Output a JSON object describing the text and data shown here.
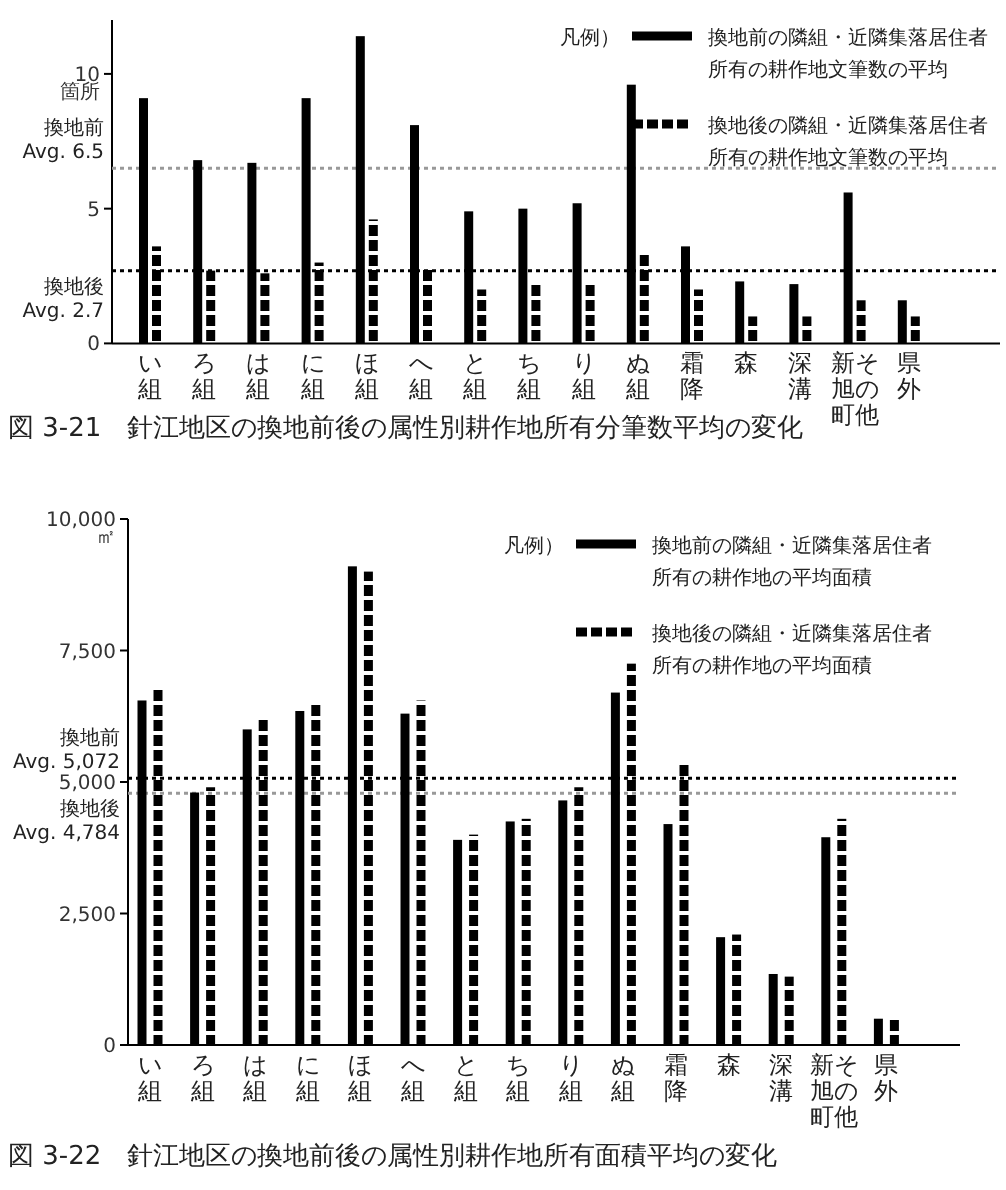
{
  "chart_data": [
    {
      "type": "bar",
      "title": "図 3-21　針江地区の換地前後の属性別耕作地所有分筆数平均の変化",
      "ylabel": "箇所",
      "legend_title": "凡例）",
      "legend": "top right",
      "grid": false,
      "categories": [
        "い組",
        "ろ組",
        "は組",
        "に組",
        "ほ組",
        "へ組",
        "と組",
        "ち組",
        "り組",
        "ぬ組",
        "霜降",
        "森",
        "深溝",
        "新旭町その他",
        "県外"
      ],
      "series": [
        {
          "name": "換地前の隣組・近隣集落居住者所有の耕作地文筆数の平均",
          "color": "#000000",
          "line_style": "solid",
          "values": [
            9.1,
            6.8,
            6.7,
            9.1,
            11.4,
            8.1,
            4.9,
            5.0,
            5.2,
            9.6,
            3.6,
            2.3,
            2.2,
            5.6,
            1.6
          ]
        },
        {
          "name": "換地後の隣組・近隣集落居住者所有の耕作地文筆数の平均",
          "color": "#000000",
          "line_style": "dashed",
          "values": [
            3.6,
            2.7,
            2.6,
            3.0,
            4.6,
            2.8,
            2.0,
            2.3,
            2.2,
            3.4,
            2.0,
            1.0,
            1.0,
            1.6,
            1.0
          ]
        }
      ],
      "ylim": [
        0,
        12
      ],
      "yticks": [
        0,
        5,
        10
      ],
      "ref_lines": [
        {
          "axis": "y",
          "value": 6.5,
          "label": "換地前\nAvg. 6.5",
          "color": "#999999",
          "line_style": "dotted"
        },
        {
          "axis": "y",
          "value": 2.7,
          "label": "換地後\nAvg. 2.7",
          "color": "#000000",
          "line_style": "dotted"
        }
      ]
    },
    {
      "type": "bar",
      "title": "図 3-22　針江地区の換地前後の属性別耕作地所有面積平均の変化",
      "ylabel": "㎡",
      "legend_title": "凡例）",
      "legend": "top right",
      "grid": false,
      "categories": [
        "い組",
        "ろ組",
        "は組",
        "に組",
        "ほ組",
        "へ組",
        "と組",
        "ち組",
        "り組",
        "ぬ組",
        "霜降",
        "森",
        "深溝",
        "新旭町その他",
        "県外"
      ],
      "series": [
        {
          "name": "換地前の隣組・近隣集落居住者所有の耕作地の平均面積",
          "color": "#000000",
          "line_style": "solid",
          "values": [
            6550,
            4800,
            6000,
            6350,
            9100,
            6300,
            3900,
            4250,
            4650,
            6700,
            4200,
            2050,
            1350,
            3950,
            500
          ]
        },
        {
          "name": "換地後の隣組・近隣集落居住者所有の耕作地の平均面積",
          "color": "#000000",
          "line_style": "dashed",
          "values": [
            6800,
            4900,
            6200,
            6500,
            9000,
            6550,
            4000,
            4300,
            4900,
            7250,
            5350,
            2100,
            1300,
            4300,
            500
          ]
        }
      ],
      "ylim": [
        0,
        10000
      ],
      "yticks": [
        0,
        {
          "value": 2500,
          "label": "2,500"
        },
        {
          "value": 5000,
          "label": "5,000"
        },
        {
          "value": 7500,
          "label": "7,500"
        },
        {
          "value": 10000,
          "label": "10,000"
        }
      ],
      "ref_lines": [
        {
          "axis": "y",
          "value": 5072,
          "label": "換地前\nAvg. 5,072",
          "color": "#000000",
          "line_style": "dotted"
        },
        {
          "axis": "y",
          "value": 4784,
          "label": "換地後\nAvg. 4,784",
          "color": "#999999",
          "line_style": "dotted"
        }
      ]
    }
  ]
}
